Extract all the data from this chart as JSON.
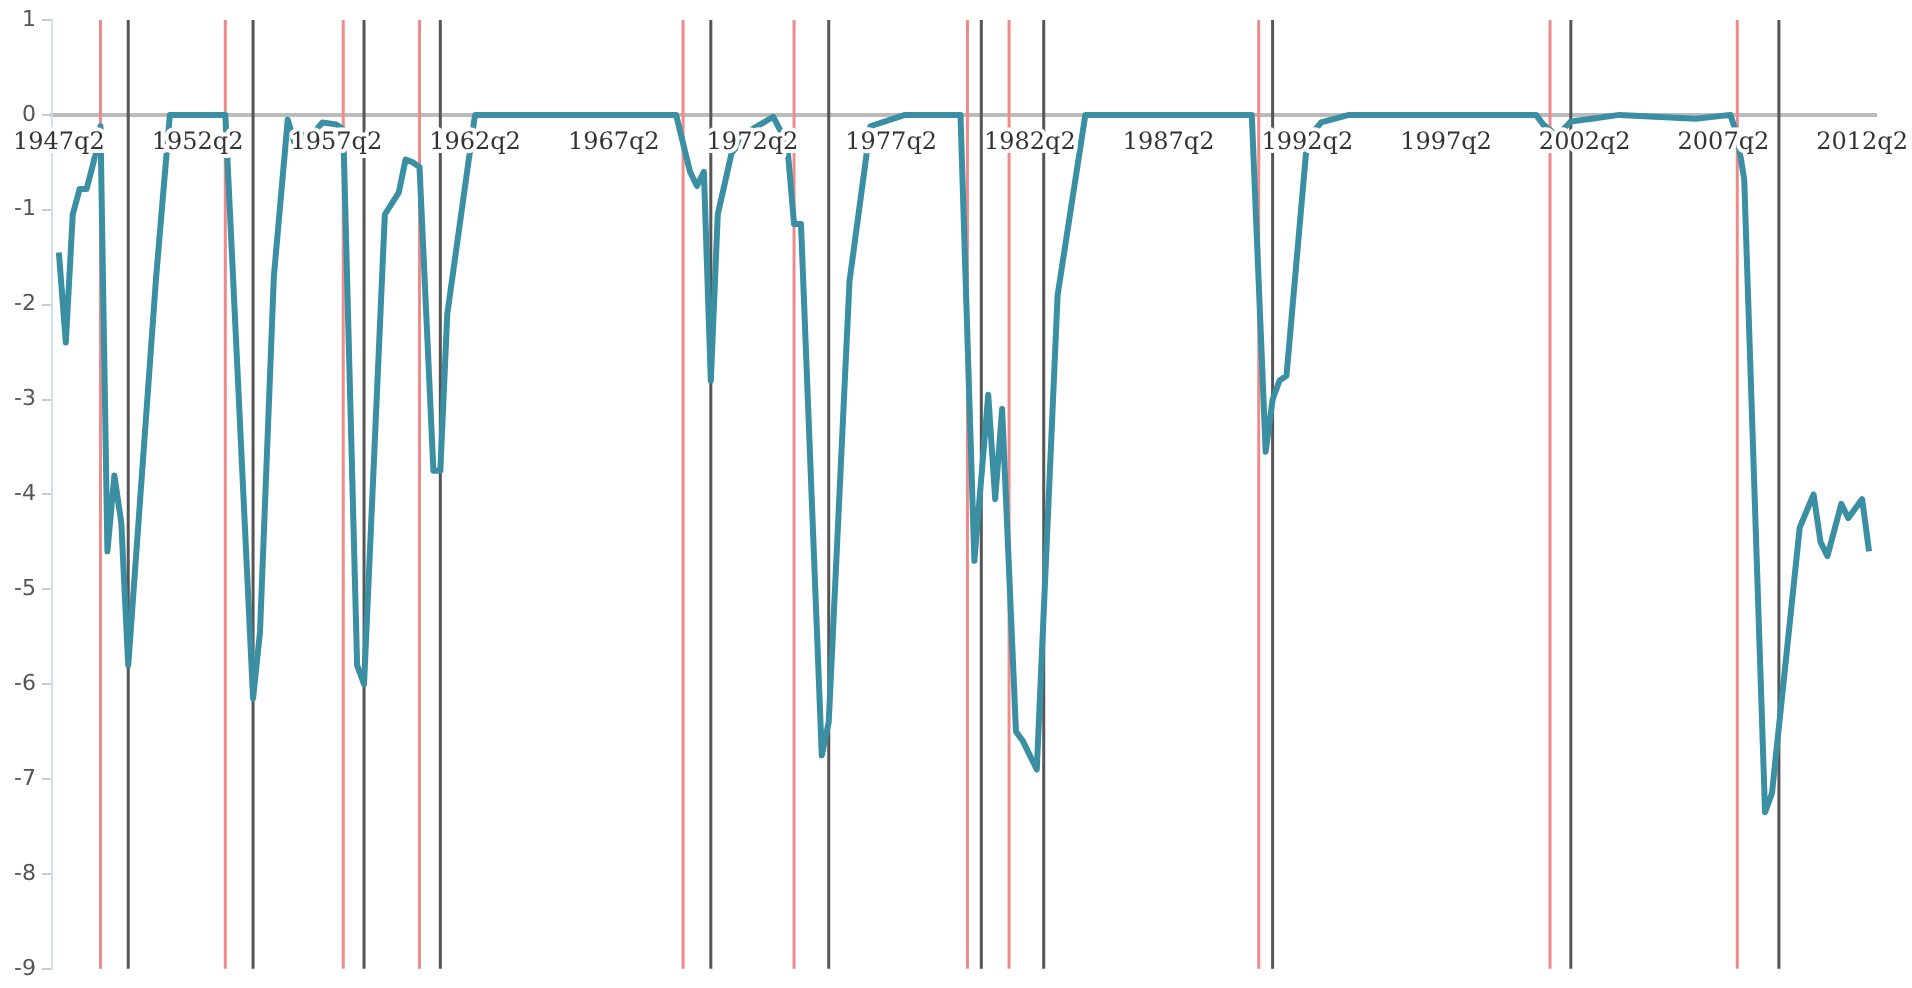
{
  "chart_data": {
    "type": "line",
    "x": [
      "1947-04",
      "1947-07",
      "1947-10",
      "1948-01",
      "1948-04",
      "1948-07",
      "1948-10",
      "1949-01",
      "1949-04",
      "1949-07",
      "1949-10",
      "1950-10",
      "1951-04",
      "1953-04",
      "1954-04",
      "1954-07",
      "1955-01",
      "1955-07",
      "1955-10",
      "1956-01",
      "1956-04",
      "1956-10",
      "1957-04",
      "1957-07",
      "1958-01",
      "1958-04",
      "1959-01",
      "1959-07",
      "1959-10",
      "1960-01",
      "1960-04",
      "1960-10",
      "1961-01",
      "1961-04",
      "1962-04",
      "1969-07",
      "1970-01",
      "1970-04",
      "1970-07",
      "1970-10",
      "1971-01",
      "1971-07",
      "1972-04",
      "1973-01",
      "1973-07",
      "1973-10",
      "1974-01",
      "1974-10",
      "1975-01",
      "1975-10",
      "1976-07",
      "1977-10",
      "1979-10",
      "1980-04",
      "1980-10",
      "1981-01",
      "1981-04",
      "1981-10",
      "1982-01",
      "1982-07",
      "1983-04",
      "1984-04",
      "1990-04",
      "1990-10",
      "1991-01",
      "1991-04",
      "1991-07",
      "1992-04",
      "1992-10",
      "1993-10",
      "2000-07",
      "2000-10",
      "2001-04",
      "2001-10",
      "2002-07",
      "2003-07",
      "2006-04",
      "2007-07",
      "2007-10",
      "2008-01",
      "2008-10",
      "2009-01",
      "2010-01",
      "2010-07",
      "2010-10",
      "2011-01",
      "2011-07",
      "2011-10",
      "2012-04",
      "2012-07"
    ],
    "series": [
      {
        "color": "#3a8fa3",
        "values": [
          -1.45,
          -2.4,
          -1.05,
          -0.78,
          -0.78,
          -0.5,
          -0.12,
          -4.6,
          -3.8,
          -4.3,
          -5.8,
          -1.73,
          0,
          0,
          -6.15,
          -5.45,
          -1.7,
          -0.05,
          -0.3,
          -0.2,
          -0.25,
          -0.08,
          -0.1,
          -0.15,
          -5.8,
          -6.0,
          -1.05,
          -0.82,
          -0.47,
          -0.5,
          -0.55,
          -3.75,
          -3.75,
          -2.1,
          0,
          0,
          -0.6,
          -0.75,
          -0.6,
          -2.8,
          -1.05,
          -0.4,
          -0.15,
          -0.02,
          -0.3,
          -1.15,
          -1.15,
          -6.75,
          -6.4,
          -1.75,
          -0.12,
          0,
          0,
          -4.7,
          -2.95,
          -4.05,
          -3.1,
          -6.5,
          -6.6,
          -6.9,
          -1.9,
          0,
          0,
          -3.55,
          -3.0,
          -2.8,
          -2.75,
          -0.25,
          -0.08,
          0,
          0,
          -0.1,
          -0.22,
          -0.07,
          -0.04,
          0,
          -0.04,
          0,
          -0.22,
          -0.68,
          -7.35,
          -7.15,
          -4.35,
          -4.0,
          -4.5,
          -4.65,
          -4.1,
          -4.25,
          -4.05,
          -4.6
        ]
      }
    ],
    "xlim": [
      "1947-01",
      "2012-10"
    ],
    "xticks": [
      {
        "value": "1947-04",
        "label": "1947q2"
      },
      {
        "value": "1952-04",
        "label": "1952q2"
      },
      {
        "value": "1957-04",
        "label": "1957q2"
      },
      {
        "value": "1962-04",
        "label": "1962q2"
      },
      {
        "value": "1967-04",
        "label": "1967q2"
      },
      {
        "value": "1972-04",
        "label": "1972q2"
      },
      {
        "value": "1977-04",
        "label": "1977q2"
      },
      {
        "value": "1982-04",
        "label": "1982q2"
      },
      {
        "value": "1987-04",
        "label": "1987q2"
      },
      {
        "value": "1992-04",
        "label": "1992q2"
      },
      {
        "value": "1997-04",
        "label": "1997q2"
      },
      {
        "value": "2002-04",
        "label": "2002q2"
      },
      {
        "value": "2007-04",
        "label": "2007q2"
      },
      {
        "value": "2012-04",
        "label": "2012q2"
      }
    ],
    "ylim": [
      -9,
      1
    ],
    "yticks": [
      1,
      0,
      -1,
      -2,
      -3,
      -4,
      -5,
      -6,
      -7,
      -8,
      -9
    ],
    "ref_lines": [
      {
        "axis": "x",
        "value": "1948-10",
        "color": "#f08a8a"
      },
      {
        "axis": "x",
        "value": "1949-10",
        "color": "#555555"
      },
      {
        "axis": "x",
        "value": "1953-04",
        "color": "#f08a8a"
      },
      {
        "axis": "x",
        "value": "1954-04",
        "color": "#555555"
      },
      {
        "axis": "x",
        "value": "1957-07",
        "color": "#f08a8a"
      },
      {
        "axis": "x",
        "value": "1958-04",
        "color": "#555555"
      },
      {
        "axis": "x",
        "value": "1960-04",
        "color": "#f08a8a"
      },
      {
        "axis": "x",
        "value": "1961-01",
        "color": "#555555"
      },
      {
        "axis": "x",
        "value": "1969-10",
        "color": "#f08a8a"
      },
      {
        "axis": "x",
        "value": "1970-10",
        "color": "#555555"
      },
      {
        "axis": "x",
        "value": "1973-10",
        "color": "#f08a8a"
      },
      {
        "axis": "x",
        "value": "1975-01",
        "color": "#555555"
      },
      {
        "axis": "x",
        "value": "1980-01",
        "color": "#f08a8a"
      },
      {
        "axis": "x",
        "value": "1980-07",
        "color": "#555555"
      },
      {
        "axis": "x",
        "value": "1981-07",
        "color": "#f08a8a"
      },
      {
        "axis": "x",
        "value": "1982-10",
        "color": "#555555"
      },
      {
        "axis": "x",
        "value": "1990-07",
        "color": "#f08a8a"
      },
      {
        "axis": "x",
        "value": "1991-01",
        "color": "#555555"
      },
      {
        "axis": "x",
        "value": "2001-01",
        "color": "#f08a8a"
      },
      {
        "axis": "x",
        "value": "2001-10",
        "color": "#555555"
      },
      {
        "axis": "x",
        "value": "2007-10",
        "color": "#f08a8a"
      },
      {
        "axis": "x",
        "value": "2009-04",
        "color": "#555555"
      }
    ]
  }
}
